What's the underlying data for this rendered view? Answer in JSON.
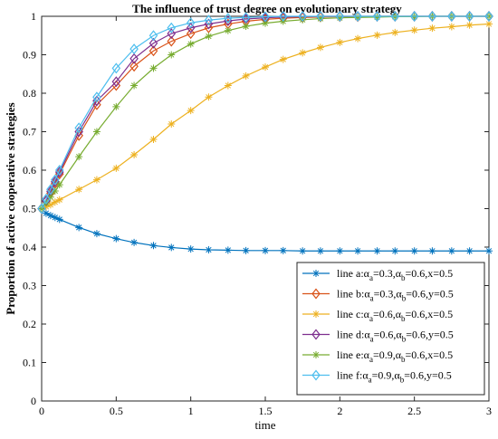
{
  "chart_data": {
    "type": "line",
    "title": "The influence of trust degree on evolutionary strategy",
    "xlabel": "time",
    "ylabel": "Proportion of active cooperative strategies",
    "xlim": [
      0,
      3
    ],
    "ylim": [
      0,
      1
    ],
    "xticks": [
      "0",
      "0.5",
      "1",
      "1.5",
      "2",
      "2.5",
      "3"
    ],
    "yticks": [
      "0",
      "0.1",
      "0.2",
      "0.3",
      "0.4",
      "0.5",
      "0.6",
      "0.7",
      "0.8",
      "0.9",
      "1"
    ],
    "legend_position": "bottom-right",
    "grid": false,
    "series": [
      {
        "name": "line a:α_a=0.3,α_b=0.6,x=0.5",
        "legend_main": "line a:",
        "legend_parts": [
          "α",
          "a",
          "=0.3,",
          "α",
          "b",
          "=0.6,x=0.5"
        ],
        "color": "#0072BD",
        "marker": "asterisk",
        "x": [
          0,
          0.03,
          0.06,
          0.09,
          0.12,
          0.25,
          0.37,
          0.5,
          0.62,
          0.75,
          0.87,
          1.0,
          1.12,
          1.25,
          1.37,
          1.5,
          1.62,
          1.75,
          1.87,
          2.0,
          2.12,
          2.25,
          2.37,
          2.5,
          2.62,
          2.75,
          2.87,
          3.0
        ],
        "y": [
          0.5,
          0.488,
          0.482,
          0.477,
          0.472,
          0.451,
          0.435,
          0.422,
          0.412,
          0.404,
          0.399,
          0.395,
          0.393,
          0.392,
          0.391,
          0.391,
          0.391,
          0.39,
          0.39,
          0.39,
          0.39,
          0.39,
          0.39,
          0.39,
          0.39,
          0.39,
          0.39,
          0.39
        ]
      },
      {
        "name": "line b:α_a=0.3,α_b=0.6,y=0.5",
        "legend_main": "line b:",
        "legend_parts": [
          "α",
          "a",
          "=0.3,",
          "α",
          "b",
          "=0.6,y=0.5"
        ],
        "color": "#D95319",
        "marker": "diamond",
        "x": [
          0,
          0.03,
          0.06,
          0.09,
          0.12,
          0.25,
          0.37,
          0.5,
          0.62,
          0.75,
          0.87,
          1.0,
          1.12,
          1.25,
          1.37,
          1.5,
          1.62,
          1.75,
          1.87,
          2.0,
          2.12,
          2.25,
          2.37,
          2.5,
          2.62,
          2.75,
          2.87,
          3.0
        ],
        "y": [
          0.5,
          0.52,
          0.54,
          0.565,
          0.59,
          0.69,
          0.77,
          0.82,
          0.87,
          0.91,
          0.935,
          0.955,
          0.97,
          0.98,
          0.987,
          0.992,
          0.995,
          0.997,
          0.998,
          0.999,
          0.999,
          1.0,
          1.0,
          1.0,
          1.0,
          1.0,
          1.0,
          1.0
        ]
      },
      {
        "name": "line c:α_a=0.6,α_b=0.6,x=0.5",
        "legend_main": "line c:",
        "legend_parts": [
          "α",
          "a",
          "=0.6,",
          "α",
          "b",
          "=0.6,x=0.5"
        ],
        "color": "#EDB120",
        "marker": "asterisk",
        "x": [
          0,
          0.03,
          0.06,
          0.09,
          0.12,
          0.25,
          0.37,
          0.5,
          0.62,
          0.75,
          0.87,
          1.0,
          1.12,
          1.25,
          1.37,
          1.5,
          1.62,
          1.75,
          1.87,
          2.0,
          2.12,
          2.25,
          2.37,
          2.5,
          2.62,
          2.75,
          2.87,
          3.0
        ],
        "y": [
          0.5,
          0.505,
          0.51,
          0.517,
          0.523,
          0.55,
          0.575,
          0.605,
          0.64,
          0.68,
          0.72,
          0.755,
          0.79,
          0.82,
          0.845,
          0.868,
          0.888,
          0.905,
          0.919,
          0.932,
          0.942,
          0.951,
          0.958,
          0.964,
          0.969,
          0.973,
          0.977,
          0.98
        ]
      },
      {
        "name": "line d:α_a=0.6,α_b=0.6,y=0.5",
        "legend_main": "line d:",
        "legend_parts": [
          "α",
          "a",
          "=0.6,",
          "α",
          "b",
          "=0.6,y=0.5"
        ],
        "color": "#7E2F8E",
        "marker": "diamond",
        "x": [
          0,
          0.03,
          0.06,
          0.09,
          0.12,
          0.25,
          0.37,
          0.5,
          0.62,
          0.75,
          0.87,
          1.0,
          1.12,
          1.25,
          1.37,
          1.5,
          1.62,
          1.75,
          1.87,
          2.0,
          2.12,
          2.25,
          2.37,
          2.5,
          2.62,
          2.75,
          2.87,
          3.0
        ],
        "y": [
          0.5,
          0.52,
          0.545,
          0.57,
          0.595,
          0.7,
          0.78,
          0.83,
          0.89,
          0.93,
          0.955,
          0.97,
          0.98,
          0.988,
          0.993,
          0.996,
          0.998,
          0.999,
          1.0,
          1.0,
          1.0,
          1.0,
          1.0,
          1.0,
          1.0,
          1.0,
          1.0,
          1.0
        ]
      },
      {
        "name": "line e:α_a=0.9,α_b=0.6,x=0.5",
        "legend_main": "line e:",
        "legend_parts": [
          "α",
          "a",
          "=0.9,",
          "α",
          "b",
          "=0.6,x=0.5"
        ],
        "color": "#77AC30",
        "marker": "asterisk",
        "x": [
          0,
          0.03,
          0.06,
          0.09,
          0.12,
          0.25,
          0.37,
          0.5,
          0.62,
          0.75,
          0.87,
          1.0,
          1.12,
          1.25,
          1.37,
          1.5,
          1.62,
          1.75,
          1.87,
          2.0,
          2.12,
          2.25,
          2.37,
          2.5,
          2.62,
          2.75,
          2.87,
          3.0
        ],
        "y": [
          0.5,
          0.515,
          0.53,
          0.546,
          0.562,
          0.635,
          0.7,
          0.765,
          0.82,
          0.865,
          0.9,
          0.928,
          0.948,
          0.963,
          0.974,
          0.982,
          0.987,
          0.991,
          0.994,
          0.996,
          0.997,
          0.998,
          0.999,
          0.999,
          1.0,
          1.0,
          1.0,
          1.0
        ]
      },
      {
        "name": "line f:α_a=0.9,α_b=0.6,y=0.5",
        "legend_main": "line f:",
        "legend_parts": [
          "α",
          "a",
          "=0.9,",
          "α",
          "b",
          "=0.6,y=0.5"
        ],
        "color": "#4DBEEE",
        "marker": "diamond",
        "x": [
          0,
          0.03,
          0.06,
          0.09,
          0.12,
          0.25,
          0.37,
          0.5,
          0.62,
          0.75,
          0.87,
          1.0,
          1.12,
          1.25,
          1.37,
          1.5,
          1.62,
          1.75,
          1.87,
          2.0,
          2.12,
          2.25,
          2.37,
          2.5,
          2.62,
          2.75,
          2.87,
          3.0
        ],
        "y": [
          0.5,
          0.525,
          0.55,
          0.575,
          0.6,
          0.71,
          0.79,
          0.865,
          0.915,
          0.95,
          0.97,
          0.983,
          0.99,
          0.995,
          0.997,
          0.999,
          1.0,
          1.0,
          1.0,
          1.0,
          1.0,
          1.0,
          1.0,
          1.0,
          1.0,
          1.0,
          1.0,
          1.0
        ]
      }
    ]
  }
}
